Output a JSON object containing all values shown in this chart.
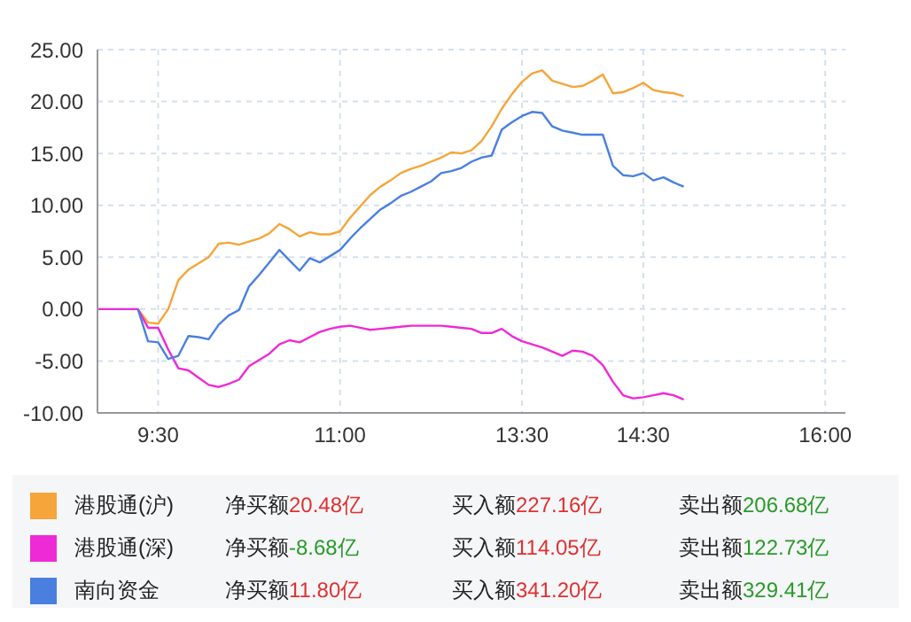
{
  "chart_data": {
    "type": "line",
    "categories": [
      null,
      null,
      null,
      null,
      null,
      null,
      "9:30",
      null,
      null,
      null,
      null,
      null,
      null,
      null,
      null,
      null,
      null,
      null,
      null,
      null,
      null,
      null,
      null,
      null,
      "11:00",
      null,
      null,
      null,
      null,
      null,
      null,
      null,
      null,
      null,
      null,
      null,
      null,
      null,
      null,
      null,
      null,
      null,
      "13:30",
      null,
      null,
      null,
      null,
      null,
      null,
      null,
      null,
      null,
      null,
      null,
      "14:30",
      null,
      null,
      null,
      null,
      null,
      null,
      null,
      null,
      null,
      null,
      null,
      null,
      null,
      null,
      null,
      null,
      null,
      "16:00",
      null,
      null
    ],
    "ylim": [
      -10,
      25
    ],
    "yticks": [
      {
        "value": 25,
        "label": "25.00"
      },
      {
        "value": 20,
        "label": "20.00"
      },
      {
        "value": 15,
        "label": "15.00"
      },
      {
        "value": 10,
        "label": "10.00"
      },
      {
        "value": 5,
        "label": "5.00"
      },
      {
        "value": 0,
        "label": "0.00"
      },
      {
        "value": -5,
        "label": "-5.00"
      },
      {
        "value": -10,
        "label": "-10.00"
      }
    ],
    "grid": true,
    "legend": "bottom",
    "marker": "none",
    "line_style": "solid",
    "series": [
      {
        "name": "港股通(沪)",
        "color": "#f5a53a",
        "values": [
          null,
          null,
          null,
          null,
          0,
          -1.3,
          -1.4,
          0.0,
          2.8,
          3.8,
          4.4,
          5.0,
          6.3,
          6.4,
          6.2,
          6.5,
          6.8,
          7.3,
          8.2,
          7.7,
          7.0,
          7.4,
          7.2,
          7.2,
          7.5,
          8.8,
          9.9,
          11.0,
          11.8,
          12.4,
          13.1,
          13.5,
          13.8,
          14.2,
          14.6,
          15.1,
          15.0,
          15.3,
          16.2,
          17.6,
          19.3,
          20.7,
          21.9,
          22.7,
          23.0,
          22.0,
          21.7,
          21.4,
          21.5,
          22.0,
          22.6,
          20.8,
          20.9,
          21.3,
          21.8,
          21.1,
          20.9,
          20.8,
          20.5,
          null,
          null,
          null,
          null,
          null,
          null,
          null,
          null,
          null,
          null,
          null,
          null,
          null,
          null,
          null,
          null
        ]
      },
      {
        "name": "港股通(深)",
        "color": "#ee2ad6",
        "values": [
          0,
          0,
          0,
          0,
          0,
          -1.8,
          -1.8,
          -3.9,
          -5.7,
          -5.9,
          -6.6,
          -7.3,
          -7.5,
          -7.2,
          -6.8,
          -5.5,
          -4.9,
          -4.3,
          -3.4,
          -3.0,
          -3.2,
          -2.7,
          -2.2,
          -1.9,
          -1.7,
          -1.6,
          -1.8,
          -2.0,
          -1.9,
          -1.8,
          -1.7,
          -1.6,
          -1.6,
          -1.6,
          -1.6,
          -1.7,
          -1.8,
          -1.9,
          -2.3,
          -2.3,
          -1.9,
          -2.6,
          -3.1,
          -3.4,
          -3.7,
          -4.1,
          -4.5,
          -4.0,
          -4.1,
          -4.5,
          -5.4,
          -7.0,
          -8.3,
          -8.6,
          -8.5,
          -8.3,
          -8.1,
          -8.3,
          -8.7,
          null,
          null,
          null,
          null,
          null,
          null,
          null,
          null,
          null,
          null,
          null,
          null,
          null,
          null,
          null,
          null
        ]
      },
      {
        "name": "南向资金",
        "color": "#4a7fe0",
        "values": [
          null,
          null,
          null,
          null,
          0,
          -3.1,
          -3.2,
          -4.8,
          -4.5,
          -2.6,
          -2.7,
          -2.9,
          -1.5,
          -0.6,
          -0.1,
          2.2,
          3.3,
          4.5,
          5.7,
          4.7,
          3.7,
          4.9,
          4.5,
          5.1,
          5.7,
          6.8,
          7.8,
          8.7,
          9.6,
          10.2,
          10.9,
          11.3,
          11.8,
          12.3,
          13.1,
          13.3,
          13.6,
          14.2,
          14.6,
          14.8,
          17.3,
          18.0,
          18.6,
          19.0,
          18.9,
          17.6,
          17.2,
          17.0,
          16.8,
          16.8,
          16.8,
          13.8,
          12.9,
          12.8,
          13.1,
          12.4,
          12.7,
          12.2,
          11.8,
          null,
          null,
          null,
          null,
          null,
          null,
          null,
          null,
          null,
          null,
          null,
          null,
          null,
          null,
          null,
          null
        ]
      }
    ],
    "annotations": [
      "净买额",
      "20.48亿",
      "买入额",
      "227.16亿",
      "卖出额",
      "206.68亿",
      "净买额",
      "-8.68亿",
      "买入额",
      "114.05亿",
      "卖出额",
      "122.73亿",
      "净买额",
      "11.80亿",
      "买入额",
      "341.20亿",
      "卖出额",
      "329.41亿"
    ]
  }
}
